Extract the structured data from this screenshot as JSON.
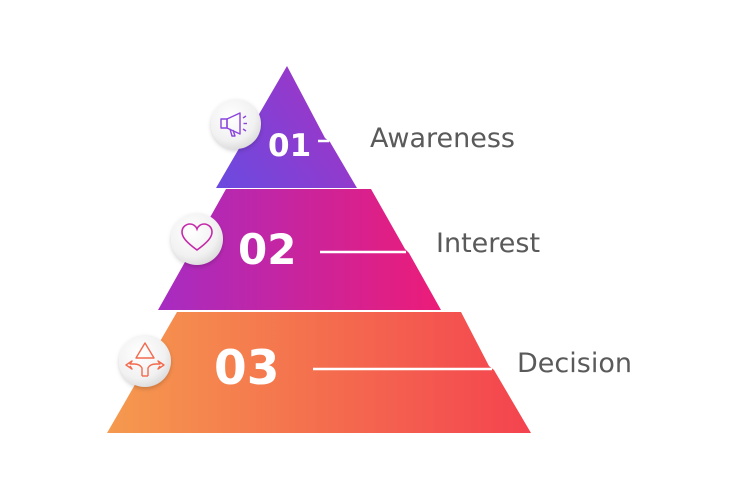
{
  "tiers": [
    {
      "number": "01",
      "label": "Awareness",
      "icon": "megaphone-icon",
      "colors": [
        "#6a4ae0",
        "#a035c6"
      ]
    },
    {
      "number": "02",
      "label": "Interest",
      "icon": "heart-icon",
      "colors": [
        "#a62cc2",
        "#ec1c78"
      ]
    },
    {
      "number": "03",
      "label": "Decision",
      "icon": "split-arrows-icon",
      "colors": [
        "#f59a4e",
        "#f4434f"
      ]
    }
  ],
  "label_color": "#5a5a5a"
}
